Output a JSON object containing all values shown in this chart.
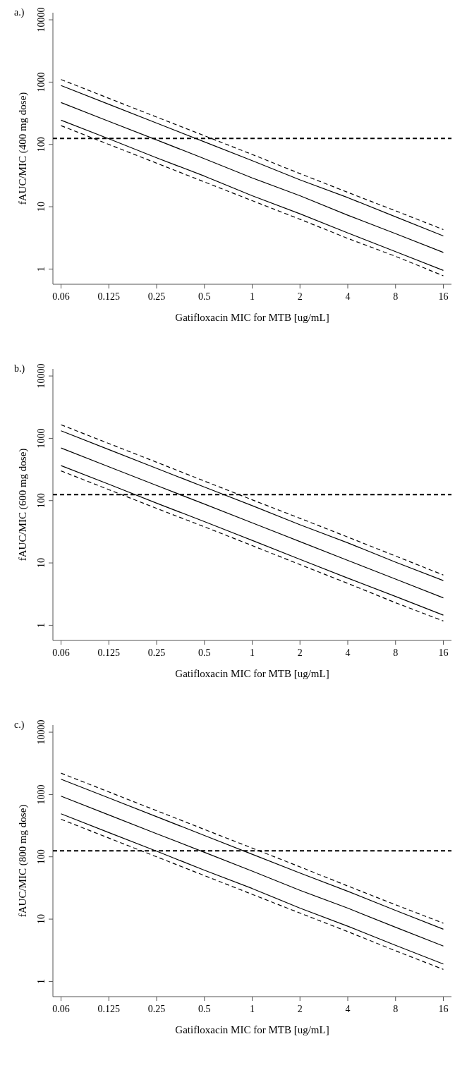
{
  "chart_data": [
    {
      "type": "line",
      "title": "a.)",
      "xlabel": "Gatifloxacin MIC for MTB [ug/mL]",
      "ylabel": "fAUC/MIC (400 mg dose)",
      "log": true,
      "categories": [
        "0.06",
        "0.125",
        "0.25",
        "0.5",
        "1",
        "2",
        "4",
        "8",
        "16"
      ],
      "ylim": [
        0.57,
        13000
      ],
      "yticks": [
        1,
        10,
        100,
        1000,
        10000
      ],
      "grid": false,
      "marker": "none",
      "series": [
        {
          "color": "#000000",
          "line_style": "dashed",
          "values": [
            1100,
            550,
            275,
            138,
            69,
            34,
            17,
            8.6,
            4.3
          ]
        },
        {
          "color": "#000000",
          "line_style": "solid",
          "values": [
            880,
            440,
            220,
            110,
            55,
            27,
            14,
            6.9,
            3.4
          ]
        },
        {
          "color": "#000000",
          "line_style": "solid",
          "values": [
            470,
            235,
            118,
            59,
            29,
            15,
            7.3,
            3.7,
            1.85
          ]
        },
        {
          "color": "#000000",
          "line_style": "solid",
          "values": [
            245,
            123,
            61,
            31,
            15,
            7.7,
            3.8,
            1.9,
            0.95
          ]
        },
        {
          "color": "#000000",
          "line_style": "dashed",
          "values": [
            200,
            100,
            50,
            25,
            12.5,
            6.3,
            3.1,
            1.6,
            0.78
          ]
        }
      ],
      "ref_lines": [
        {
          "axis": "y",
          "value": 125,
          "color": "#000000",
          "line_style": "dashed"
        }
      ]
    },
    {
      "type": "line",
      "title": "b.)",
      "xlabel": "Gatifloxacin MIC for MTB [ug/mL]",
      "ylabel": "fAUC/MIC (600 mg dose)",
      "log": true,
      "categories": [
        "0.06",
        "0.125",
        "0.25",
        "0.5",
        "1",
        "2",
        "4",
        "8",
        "16"
      ],
      "ylim": [
        0.57,
        13000
      ],
      "yticks": [
        1,
        10,
        100,
        1000,
        10000
      ],
      "grid": false,
      "marker": "none",
      "series": [
        {
          "color": "#000000",
          "line_style": "dashed",
          "values": [
            1650,
            825,
            413,
            206,
            103,
            52,
            26,
            12.9,
            6.4
          ]
        },
        {
          "color": "#000000",
          "line_style": "solid",
          "values": [
            1320,
            660,
            330,
            165,
            83,
            41,
            21,
            10.3,
            5.2
          ]
        },
        {
          "color": "#000000",
          "line_style": "solid",
          "values": [
            700,
            350,
            175,
            88,
            44,
            22,
            11,
            5.5,
            2.75
          ]
        },
        {
          "color": "#000000",
          "line_style": "solid",
          "values": [
            365,
            183,
            91,
            46,
            23,
            11.4,
            5.7,
            2.9,
            1.45
          ]
        },
        {
          "color": "#000000",
          "line_style": "dashed",
          "values": [
            300,
            150,
            75,
            38,
            19,
            9.4,
            4.7,
            2.3,
            1.17
          ]
        }
      ],
      "ref_lines": [
        {
          "axis": "y",
          "value": 125,
          "color": "#000000",
          "line_style": "dashed"
        }
      ]
    },
    {
      "type": "line",
      "title": "c.)",
      "xlabel": "Gatifloxacin MIC for MTB [ug/mL]",
      "ylabel": "fAUC/MIC (800 mg dose)",
      "log": true,
      "categories": [
        "0.06",
        "0.125",
        "0.25",
        "0.5",
        "1",
        "2",
        "4",
        "8",
        "16"
      ],
      "ylim": [
        0.57,
        13000
      ],
      "yticks": [
        1,
        10,
        100,
        1000,
        10000
      ],
      "grid": false,
      "marker": "none",
      "series": [
        {
          "color": "#000000",
          "line_style": "dashed",
          "values": [
            2200,
            1100,
            550,
            275,
            138,
            69,
            34,
            17,
            8.6
          ]
        },
        {
          "color": "#000000",
          "line_style": "solid",
          "values": [
            1760,
            880,
            440,
            220,
            110,
            55,
            28,
            13.8,
            6.9
          ]
        },
        {
          "color": "#000000",
          "line_style": "solid",
          "values": [
            940,
            470,
            235,
            118,
            59,
            29,
            15,
            7.4,
            3.7
          ]
        },
        {
          "color": "#000000",
          "line_style": "solid",
          "values": [
            490,
            245,
            123,
            61,
            31,
            15,
            7.7,
            3.8,
            1.9
          ]
        },
        {
          "color": "#000000",
          "line_style": "dashed",
          "values": [
            400,
            200,
            100,
            50,
            25,
            12.5,
            6.3,
            3.1,
            1.56
          ]
        }
      ],
      "ref_lines": [
        {
          "axis": "y",
          "value": 125,
          "color": "#000000",
          "line_style": "dashed"
        }
      ]
    }
  ]
}
